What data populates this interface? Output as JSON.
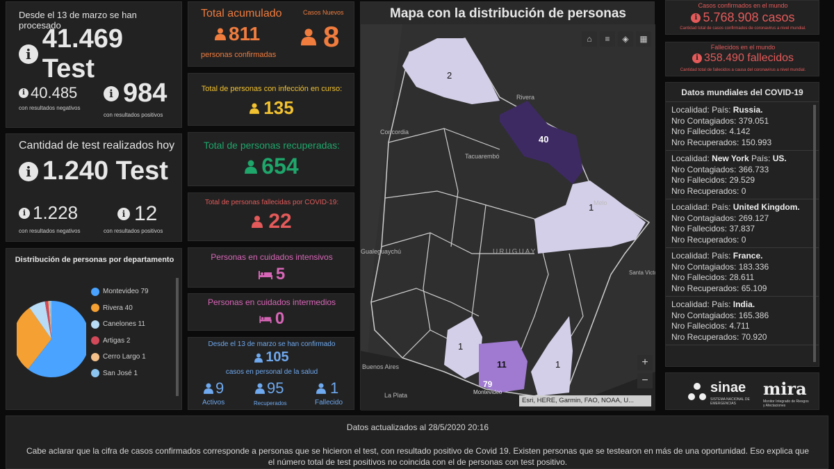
{
  "tests": {
    "since_label": "Desde el 13 de marzo se han procesado",
    "total": "41.469 Test",
    "negative_value": "40.485",
    "negative_label": "con resultados negativos",
    "positive_value": "984",
    "positive_label": "con resultados positivos"
  },
  "today": {
    "label": "Cantidad de test realizados hoy",
    "total": "1.240 Test",
    "negative_value": "1.228",
    "negative_label": "con resultados negativos",
    "positive_value": "12",
    "positive_label": "con resultados positivos"
  },
  "distribution": {
    "title": "Distribución de personas por departamento",
    "items": [
      {
        "label": "Montevideo  79",
        "color": "#4aa3ff"
      },
      {
        "label": "Rivera  40",
        "color": "#f5a033"
      },
      {
        "label": "Canelones  11",
        "color": "#b8dcf5"
      },
      {
        "label": "Artigas  2",
        "color": "#d24a5a"
      },
      {
        "label": "Cerro Largo  1",
        "color": "#f4c08a"
      },
      {
        "label": "San José  1",
        "color": "#8cc6f0"
      }
    ]
  },
  "accumulated": {
    "title": "Total acumulado",
    "value": "811",
    "subtitle": "personas confirmadas",
    "new_label": "Casos Nuevos",
    "new_value": "8"
  },
  "active": {
    "title": "Total de personas con infección en curso:",
    "value": "135"
  },
  "recovered": {
    "title": "Total de personas recuperadas:",
    "value": "654"
  },
  "deceased": {
    "title": "Total de personas fallecidas por COVID-19:",
    "value": "22"
  },
  "icu": {
    "title": "Personas en cuidados intensivos",
    "value": "5"
  },
  "intermediate": {
    "title": "Personas en cuidados intermedios",
    "value": "0"
  },
  "health_staff": {
    "line1": "Desde el 13 de marzo se han confirmado",
    "value": "105",
    "line2": "casos en personal de la salud",
    "active_value": "9",
    "active_label": "Activos",
    "recovered_value": "95",
    "recovered_label": "Recuperados",
    "deceased_value": "1",
    "deceased_label": "Fallecido"
  },
  "map": {
    "title": "Mapa con la distribución de personas",
    "country": "URUGUAY",
    "places": [
      "Rivera",
      "Concordia",
      "Tacuarembó",
      "Melo",
      "Gualeguaychú",
      "Santa Victoria do Palmar",
      "Buenos Aires",
      "La Plata",
      "Montevideo"
    ],
    "counts": {
      "artigas": "2",
      "rivera": "40",
      "cerro_largo": "1",
      "colonia": "1",
      "canelones": "11",
      "maldonado": "1",
      "montevideo": "79"
    },
    "zoom_in": "+",
    "zoom_out": "−",
    "attribution": "Esri, HERE, Garmin, FAO, NOAA, U..."
  },
  "world": {
    "cases_label": "Casos confirmados en el mundo",
    "cases_value": "5.768.908 casos",
    "cases_note": "Cantidad total de casos confirmados de coronavirus a nivel mundial.",
    "deaths_label": "Fallecidos en el mundo",
    "deaths_value": "358.490 fallecidos",
    "deaths_note": "Cantidad total de fallecidos a causa del coronavirus a nivel mundial.",
    "list_title": "Datos mundiales del COVID-19",
    "loc_label": "Localidad:",
    "country_label": "País:",
    "contagiados_label": "Nro Contagiados:",
    "fallecidos_label": "Nro Fallecidos:",
    "recuperados_label": "Nro Recuperados:",
    "entries": [
      {
        "locality": "",
        "country": "Russia.",
        "cases": "379.051",
        "deaths": "4.142",
        "recovered": "150.993"
      },
      {
        "locality": "New York",
        "country": "US.",
        "cases": "366.733",
        "deaths": "29.529",
        "recovered": "0"
      },
      {
        "locality": "",
        "country": "United Kingdom.",
        "cases": "269.127",
        "deaths": "37.837",
        "recovered": "0"
      },
      {
        "locality": "",
        "country": "France.",
        "cases": "183.336",
        "deaths": "28.611",
        "recovered": "65.109"
      },
      {
        "locality": "",
        "country": "India.",
        "cases": "165.386",
        "deaths": "4.711",
        "recovered": "70.920"
      }
    ]
  },
  "logos": {
    "sinae": "sinae",
    "sinae_sub": "SISTEMA NACIONAL DE EMERGENCIAS",
    "mira": "mira",
    "mira_sub": "Monitor Integrado de Riesgos y Afectaciones"
  },
  "footer": {
    "updated": "Datos actualizados al 28/5/2020 20:16",
    "note": "Cabe aclarar que la cifra de casos confirmados corresponde a personas que se hicieron el test, con resultado positivo de Covid 19. Existen personas que se testearon en más de una oportunidad. Eso explica que el número total de test positivos no coincida con el de personas con test positivo."
  }
}
